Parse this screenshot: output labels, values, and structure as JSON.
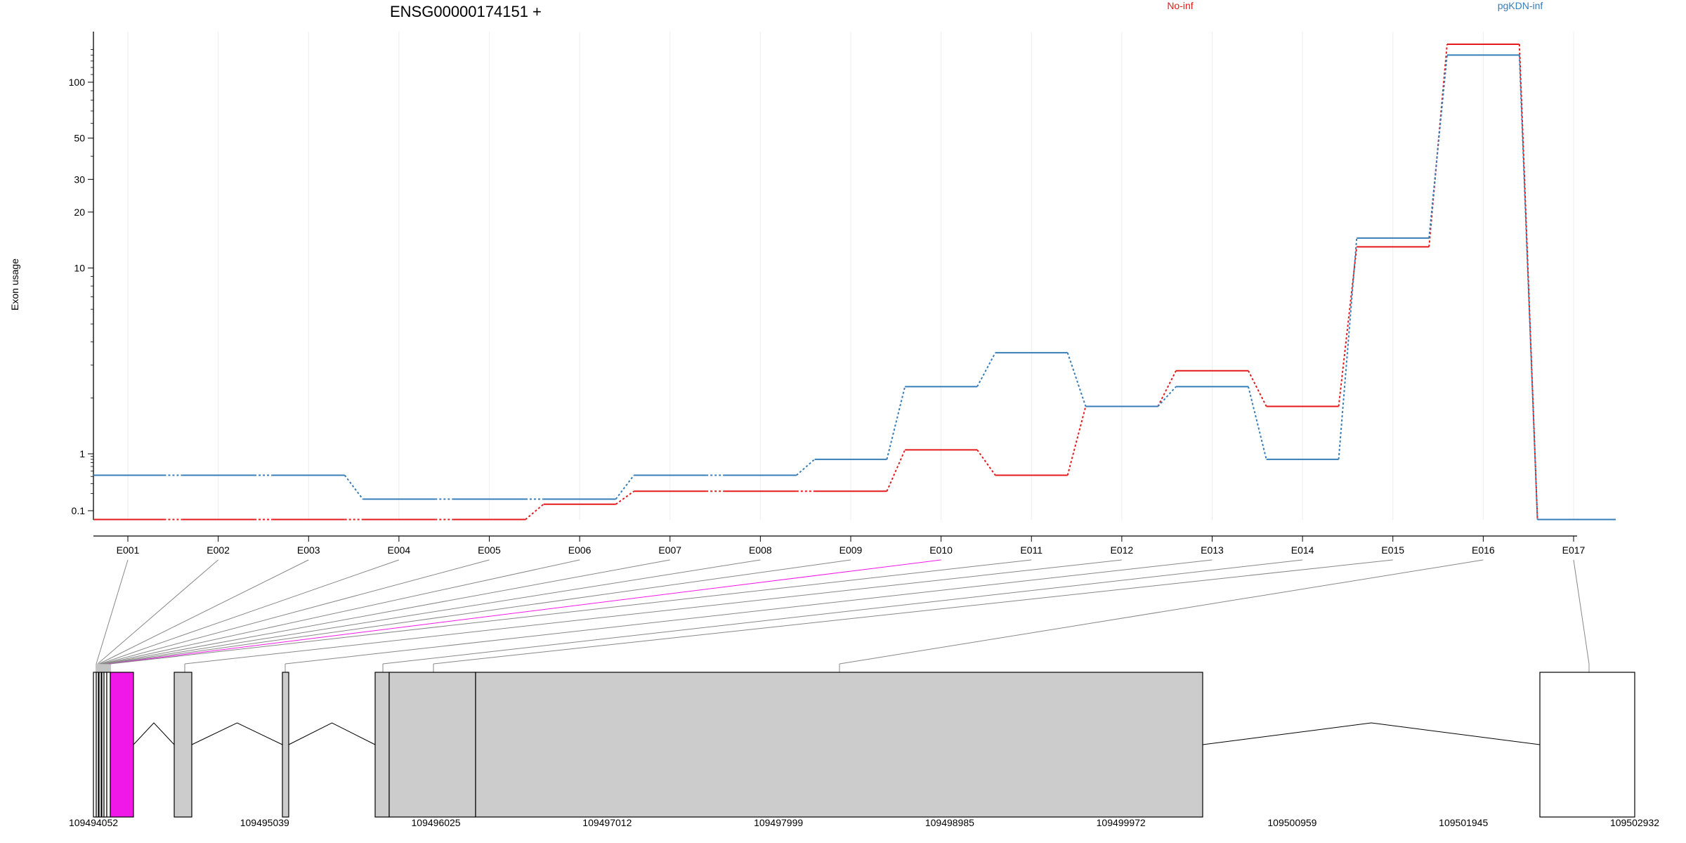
{
  "chart_data": {
    "type": "line",
    "title": "ENSG00000174151 +",
    "ylabel": "Exon usage",
    "y_scale": "log",
    "y_ticks": [
      0.1,
      1,
      10,
      20,
      30,
      50,
      100
    ],
    "y_tick_labels": [
      "0.1",
      "1",
      "10",
      "20",
      "30",
      "50",
      "100"
    ],
    "categories": [
      "E001",
      "E002",
      "E003",
      "E004",
      "E005",
      "E006",
      "E007",
      "E008",
      "E009",
      "E010",
      "E011",
      "E012",
      "E013",
      "E014",
      "E015",
      "E016",
      "E017"
    ],
    "series": [
      {
        "name": "No-inf",
        "color": "#e41a1c",
        "values": [
          0.07,
          0.07,
          0.07,
          0.07,
          0.07,
          0.13,
          0.22,
          0.22,
          0.22,
          1.05,
          0.42,
          1.8,
          2.8,
          1.8,
          13,
          160,
          0.07
        ]
      },
      {
        "name": "pgKDN-inf",
        "color": "#377eb8",
        "values": [
          0.42,
          0.42,
          0.42,
          0.16,
          0.16,
          0.16,
          0.42,
          0.42,
          0.8,
          2.3,
          3.5,
          1.8,
          2.3,
          0.8,
          14.5,
          140,
          0.07
        ]
      }
    ],
    "legend_placement": "top",
    "grid": "vertical",
    "gene_model": {
      "coordinate_labels": [
        "109494052",
        "109495039",
        "109496025",
        "109497012",
        "109497999",
        "109498985",
        "109499972",
        "109500959",
        "109501945",
        "109502932"
      ],
      "coord_start": 109494052,
      "coord_end": 109502932,
      "highlight_color": "#f018e8",
      "exon_fill": "#cccccc",
      "highlighted_exon": "E010"
    }
  }
}
